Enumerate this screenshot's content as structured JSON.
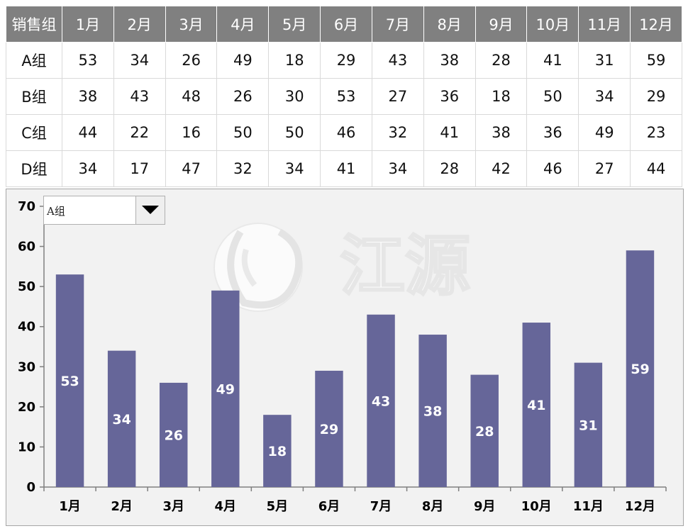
{
  "table": {
    "headers": [
      "销售组",
      "1月",
      "2月",
      "3月",
      "4月",
      "5月",
      "6月",
      "7月",
      "8月",
      "9月",
      "10月",
      "11月",
      "12月"
    ],
    "rows": [
      {
        "group": "A组",
        "values": [
          53,
          34,
          26,
          49,
          18,
          29,
          43,
          38,
          28,
          41,
          31,
          59
        ]
      },
      {
        "group": "B组",
        "values": [
          38,
          43,
          48,
          26,
          30,
          53,
          27,
          36,
          18,
          50,
          34,
          29
        ]
      },
      {
        "group": "C组",
        "values": [
          44,
          22,
          16,
          50,
          50,
          46,
          32,
          41,
          38,
          36,
          49,
          23
        ]
      },
      {
        "group": "D组",
        "values": [
          34,
          17,
          47,
          32,
          34,
          41,
          34,
          28,
          42,
          46,
          27,
          44
        ]
      }
    ]
  },
  "selector": {
    "selected": "A组",
    "icon": "dropdown-arrow-icon"
  },
  "watermark": {
    "text": "江源",
    "icon": "watermark-logo-icon"
  },
  "colors": {
    "bar": "#666699",
    "header_bg": "#808080",
    "panel_bg": "#f2f2f2"
  },
  "chart_data": {
    "type": "bar",
    "categories": [
      "1月",
      "2月",
      "3月",
      "4月",
      "5月",
      "6月",
      "7月",
      "8月",
      "9月",
      "10月",
      "11月",
      "12月"
    ],
    "values": [
      53,
      34,
      26,
      49,
      18,
      29,
      43,
      38,
      28,
      41,
      31,
      59
    ],
    "data_labels": true,
    "ylim": [
      0,
      70
    ],
    "yticks": [
      0,
      10,
      20,
      30,
      40,
      50,
      60,
      70
    ],
    "grid": false,
    "title": "",
    "xlabel": "",
    "ylabel": ""
  }
}
